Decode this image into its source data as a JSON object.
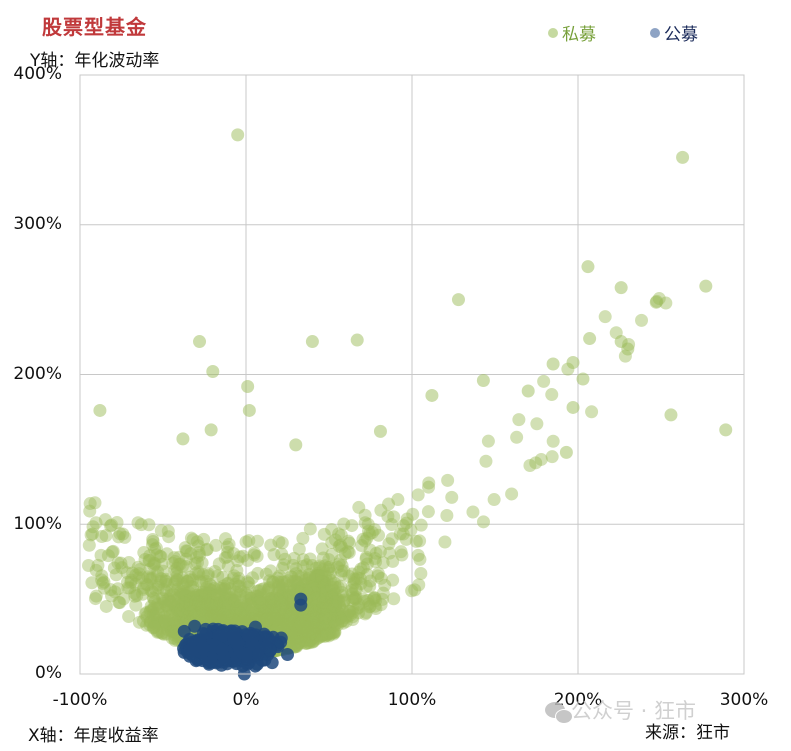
{
  "chart_data": {
    "type": "scatter",
    "title": "股票型基金",
    "xlabel": "X轴：年度收益率",
    "ylabel": "Y轴：年化波动率",
    "xlim": [
      -100,
      300
    ],
    "ylim": [
      0,
      400
    ],
    "x_ticks": [
      "-100%",
      "0%",
      "100%",
      "200%",
      "300%"
    ],
    "y_ticks": [
      "400%",
      "300%",
      "200%",
      "100%",
      "0%"
    ],
    "grid": true,
    "legend_position": "top-right",
    "series": [
      {
        "name": "私募",
        "color": "#9bbb59",
        "description": "dense cluster around x -60%..+80%, y 10%..80%, with tail rising to upper right",
        "outliers": [
          {
            "x": -5,
            "y": 360
          },
          {
            "x": 263,
            "y": 345
          },
          {
            "x": 206,
            "y": 272
          },
          {
            "x": 226,
            "y": 258
          },
          {
            "x": 277,
            "y": 259
          },
          {
            "x": 128,
            "y": 250
          },
          {
            "x": 207,
            "y": 224
          },
          {
            "x": 226,
            "y": 222
          },
          {
            "x": 230,
            "y": 217
          },
          {
            "x": -28,
            "y": 222
          },
          {
            "x": 40,
            "y": 222
          },
          {
            "x": 67,
            "y": 223
          },
          {
            "x": -20,
            "y": 202
          },
          {
            "x": 1,
            "y": 192
          },
          {
            "x": 185,
            "y": 207
          },
          {
            "x": 197,
            "y": 208
          },
          {
            "x": 203,
            "y": 197
          },
          {
            "x": -88,
            "y": 176
          },
          {
            "x": 2,
            "y": 176
          },
          {
            "x": 256,
            "y": 173
          },
          {
            "x": 289,
            "y": 163
          },
          {
            "x": 81,
            "y": 162
          },
          {
            "x": 30,
            "y": 153
          },
          {
            "x": -38,
            "y": 157
          },
          {
            "x": -21,
            "y": 163
          },
          {
            "x": 143,
            "y": 196
          },
          {
            "x": 112,
            "y": 186
          },
          {
            "x": 170,
            "y": 189
          },
          {
            "x": 197,
            "y": 178
          },
          {
            "x": 193,
            "y": 148
          }
        ]
      },
      {
        "name": "公募",
        "color": "#1f497d",
        "description": "tight cluster around x -40%..+30%, y 10%..35%",
        "outliers": [
          {
            "x": 33,
            "y": 50
          },
          {
            "x": 33,
            "y": 46
          },
          {
            "x": -1,
            "y": 0
          },
          {
            "x": 25,
            "y": 13
          }
        ]
      }
    ]
  },
  "header": {
    "title": "股票型基金",
    "ylabel": "Y轴：年化波动率"
  },
  "legend": [
    {
      "label": "私募",
      "color": "#9bbb59",
      "text_color": "#77a03a"
    },
    {
      "label": "公募",
      "color": "#1f497d",
      "text_color": "#1a2a5a"
    }
  ],
  "footer": {
    "xlabel": "X轴：年度收益率",
    "source": "来源：狂市",
    "watermark": "公众号 · 狂市"
  }
}
